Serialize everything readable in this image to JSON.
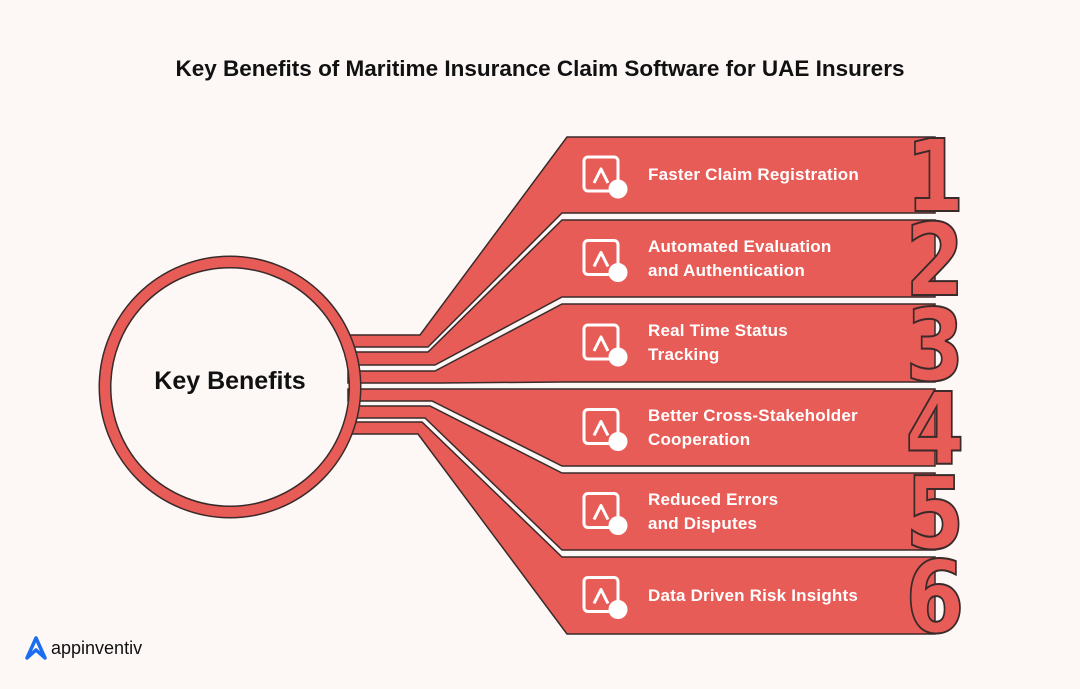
{
  "title": "Key Benefits of Maritime Insurance Claim Software for UAE Insurers",
  "center_label": "Key Benefits",
  "colors": {
    "band": "#E85C57",
    "outline": "#3A2A2A",
    "background": "#FDF7F6",
    "logo": "#1A6CF0"
  },
  "benefits": [
    {
      "number": "1",
      "line1": "Faster Claim Registration",
      "line2": "",
      "icon": "document-shield-pencil-icon"
    },
    {
      "number": "2",
      "line1": "Automated Evaluation",
      "line2": "and Authentication",
      "icon": "image-check-icon"
    },
    {
      "number": "3",
      "line1": "Real Time Status",
      "line2": "Tracking",
      "icon": "image-clock-icon"
    },
    {
      "number": "4",
      "line1": "Better Cross-Stakeholder",
      "line2": "Cooperation",
      "icon": "people-collaboration-icon"
    },
    {
      "number": "5",
      "line1": "Reduced Errors",
      "line2": "and Disputes",
      "icon": "hand-checklist-icon"
    },
    {
      "number": "6",
      "line1": "Data Driven Risk Insights",
      "line2": "",
      "icon": "report-warning-icon"
    }
  ],
  "logo": {
    "text": "appinventiv"
  }
}
